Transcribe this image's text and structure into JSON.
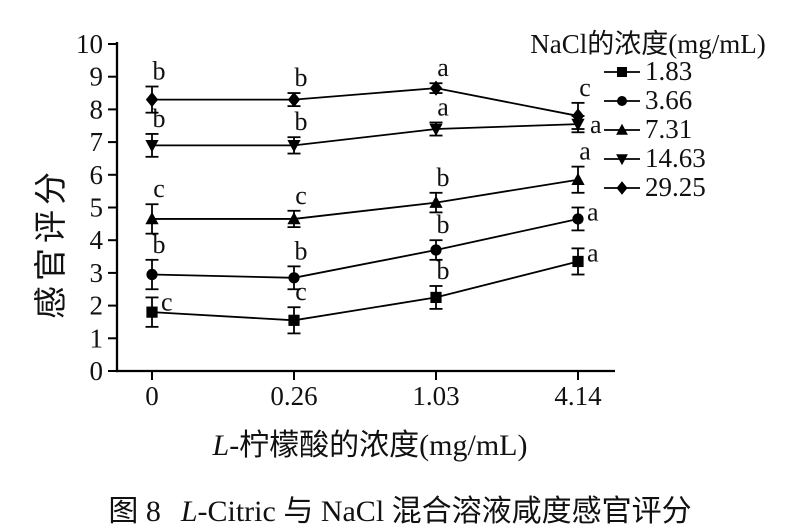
{
  "figure": {
    "ylabel": "感官评分",
    "xlabel_italic": "L",
    "xlabel_rest": "-柠檬酸的浓度(mg/mL)",
    "legend_title": "NaCl的浓度(mg/mL)",
    "caption_prefix": "图 8",
    "caption_italic": "L",
    "caption_rest": "-Citric 与 NaCl 混合溶液咸度感官评分"
  },
  "chart_data": {
    "type": "line",
    "title": "",
    "xlabel": "L-柠檬酸的浓度(mg/mL)",
    "ylabel": "感官评分",
    "categories": [
      "0",
      "0.26",
      "1.03",
      "4.14"
    ],
    "ylim": [
      0,
      10
    ],
    "ytick_step": 1,
    "yticks": [
      0,
      1,
      2,
      3,
      4,
      5,
      6,
      7,
      8,
      9,
      10
    ],
    "grid": false,
    "legend_title": "NaCl的浓度(mg/mL)",
    "legend_position": "top-right",
    "line_color": "#000000",
    "marker_color": "#000000",
    "error_bars": true,
    "series": [
      {
        "name": "1.83",
        "marker": "square",
        "values": [
          1.8,
          1.55,
          2.25,
          3.35
        ],
        "errors": [
          0.45,
          0.4,
          0.35,
          0.4
        ],
        "letters": [
          "c",
          "c",
          "b",
          "a"
        ],
        "letter_pos": [
          "right",
          "above",
          "above",
          "right"
        ]
      },
      {
        "name": "3.66",
        "marker": "circle",
        "values": [
          2.95,
          2.85,
          3.7,
          4.65
        ],
        "errors": [
          0.45,
          0.35,
          0.3,
          0.35
        ],
        "letters": [
          "b",
          "b",
          "b",
          "a"
        ],
        "letter_pos": [
          "above",
          "above",
          "above",
          "right"
        ]
      },
      {
        "name": "7.31",
        "marker": "triangle-up",
        "values": [
          4.65,
          4.65,
          5.15,
          5.85
        ],
        "errors": [
          0.45,
          0.25,
          0.3,
          0.4
        ],
        "letters": [
          "c",
          "c",
          "b",
          "a"
        ],
        "letter_pos": [
          "above",
          "above",
          "above",
          "above"
        ]
      },
      {
        "name": "14.63",
        "marker": "triangle-down",
        "values": [
          6.9,
          6.9,
          7.4,
          7.55
        ],
        "errors": [
          0.35,
          0.25,
          0.2,
          0.25
        ],
        "letters": [
          "b",
          "b",
          "a",
          "a"
        ],
        "letter_pos": [
          "above",
          "above",
          "above",
          "right-marker"
        ]
      },
      {
        "name": "29.25",
        "marker": "diamond",
        "values": [
          8.3,
          8.3,
          8.65,
          7.8
        ],
        "errors": [
          0.4,
          0.2,
          0.15,
          0.4
        ],
        "letters": [
          "b",
          "b",
          "a",
          "c"
        ],
        "letter_pos": [
          "above",
          "above",
          "above",
          "above"
        ]
      }
    ],
    "caption": "图 8  L-Citric 与 NaCl 混合溶液咸度感官评分"
  }
}
